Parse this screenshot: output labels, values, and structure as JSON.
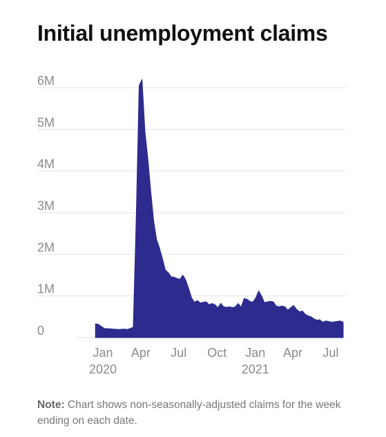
{
  "title": "Initial unemployment claims",
  "note": {
    "label": "Note:",
    "text": "Chart shows non-seasonally-adjusted claims for the week ending on each date."
  },
  "colors": {
    "area": "#2e2b8f",
    "grid": "#e3e3e3",
    "tick_text": "#8a8a8a"
  },
  "chart_data": {
    "type": "area",
    "title": "Initial unemployment claims",
    "xlabel": "",
    "ylabel": "",
    "ylim": [
      0,
      6000000
    ],
    "grid": true,
    "y_ticks": [
      {
        "value": 0,
        "label": "0"
      },
      {
        "value": 1000000,
        "label": "1M"
      },
      {
        "value": 2000000,
        "label": "2M"
      },
      {
        "value": 3000000,
        "label": "3M"
      },
      {
        "value": 4000000,
        "label": "4M"
      },
      {
        "value": 5000000,
        "label": "5M"
      },
      {
        "value": 6000000,
        "label": "6M"
      }
    ],
    "x_ticks": [
      {
        "date": "2020-01-01",
        "label": "Jan",
        "sublabel": "2020"
      },
      {
        "date": "2020-04-01",
        "label": "Apr",
        "sublabel": ""
      },
      {
        "date": "2020-07-01",
        "label": "Jul",
        "sublabel": ""
      },
      {
        "date": "2020-10-01",
        "label": "Oct",
        "sublabel": ""
      },
      {
        "date": "2021-01-01",
        "label": "Jan",
        "sublabel": "2021"
      },
      {
        "date": "2021-04-01",
        "label": "Apr",
        "sublabel": ""
      },
      {
        "date": "2021-07-01",
        "label": "Jul",
        "sublabel": ""
      }
    ],
    "x_range": [
      "2019-10-25",
      "2021-08-05"
    ],
    "series": [
      {
        "values": [
          [
            "2019-12-14",
            330000
          ],
          [
            "2019-12-21",
            320000
          ],
          [
            "2019-12-28",
            270000
          ],
          [
            "2020-01-04",
            220000
          ],
          [
            "2020-01-11",
            215000
          ],
          [
            "2020-01-18",
            212000
          ],
          [
            "2020-01-25",
            205000
          ],
          [
            "2020-02-01",
            200000
          ],
          [
            "2020-02-08",
            195000
          ],
          [
            "2020-02-15",
            200000
          ],
          [
            "2020-02-22",
            205000
          ],
          [
            "2020-02-29",
            195000
          ],
          [
            "2020-03-07",
            220000
          ],
          [
            "2020-03-14",
            250000
          ],
          [
            "2020-03-21",
            2900000
          ],
          [
            "2020-03-28",
            6050000
          ],
          [
            "2020-04-04",
            6200000
          ],
          [
            "2020-04-11",
            4950000
          ],
          [
            "2020-04-18",
            4300000
          ],
          [
            "2020-04-25",
            3500000
          ],
          [
            "2020-05-02",
            2800000
          ],
          [
            "2020-05-09",
            2350000
          ],
          [
            "2020-05-16",
            2150000
          ],
          [
            "2020-05-23",
            1900000
          ],
          [
            "2020-05-30",
            1620000
          ],
          [
            "2020-06-06",
            1560000
          ],
          [
            "2020-06-13",
            1460000
          ],
          [
            "2020-06-20",
            1450000
          ],
          [
            "2020-06-27",
            1420000
          ],
          [
            "2020-07-04",
            1400000
          ],
          [
            "2020-07-11",
            1500000
          ],
          [
            "2020-07-18",
            1380000
          ],
          [
            "2020-07-25",
            1180000
          ],
          [
            "2020-08-01",
            950000
          ],
          [
            "2020-08-08",
            850000
          ],
          [
            "2020-08-15",
            890000
          ],
          [
            "2020-08-22",
            830000
          ],
          [
            "2020-08-29",
            850000
          ],
          [
            "2020-09-05",
            860000
          ],
          [
            "2020-09-12",
            790000
          ],
          [
            "2020-09-19",
            820000
          ],
          [
            "2020-09-26",
            790000
          ],
          [
            "2020-10-03",
            720000
          ],
          [
            "2020-10-10",
            820000
          ],
          [
            "2020-10-17",
            740000
          ],
          [
            "2020-10-24",
            730000
          ],
          [
            "2020-10-31",
            740000
          ],
          [
            "2020-11-07",
            720000
          ],
          [
            "2020-11-14",
            740000
          ],
          [
            "2020-11-21",
            820000
          ],
          [
            "2020-11-28",
            730000
          ],
          [
            "2020-12-05",
            940000
          ],
          [
            "2020-12-12",
            920000
          ],
          [
            "2020-12-19",
            870000
          ],
          [
            "2020-12-26",
            850000
          ],
          [
            "2021-01-02",
            950000
          ],
          [
            "2021-01-09",
            1120000
          ],
          [
            "2021-01-16",
            1000000
          ],
          [
            "2021-01-23",
            840000
          ],
          [
            "2021-01-30",
            860000
          ],
          [
            "2021-02-06",
            870000
          ],
          [
            "2021-02-13",
            860000
          ],
          [
            "2021-02-20",
            760000
          ],
          [
            "2021-02-27",
            740000
          ],
          [
            "2021-03-06",
            760000
          ],
          [
            "2021-03-13",
            740000
          ],
          [
            "2021-03-20",
            660000
          ],
          [
            "2021-03-27",
            720000
          ],
          [
            "2021-04-03",
            770000
          ],
          [
            "2021-04-10",
            680000
          ],
          [
            "2021-04-17",
            620000
          ],
          [
            "2021-04-24",
            640000
          ],
          [
            "2021-05-01",
            560000
          ],
          [
            "2021-05-08",
            520000
          ],
          [
            "2021-05-15",
            500000
          ],
          [
            "2021-05-22",
            450000
          ],
          [
            "2021-05-29",
            420000
          ],
          [
            "2021-06-05",
            430000
          ],
          [
            "2021-06-12",
            370000
          ],
          [
            "2021-06-19",
            400000
          ],
          [
            "2021-06-26",
            390000
          ],
          [
            "2021-07-03",
            370000
          ],
          [
            "2021-07-10",
            380000
          ],
          [
            "2021-07-17",
            390000
          ],
          [
            "2021-07-24",
            400000
          ],
          [
            "2021-07-31",
            370000
          ]
        ]
      }
    ]
  }
}
